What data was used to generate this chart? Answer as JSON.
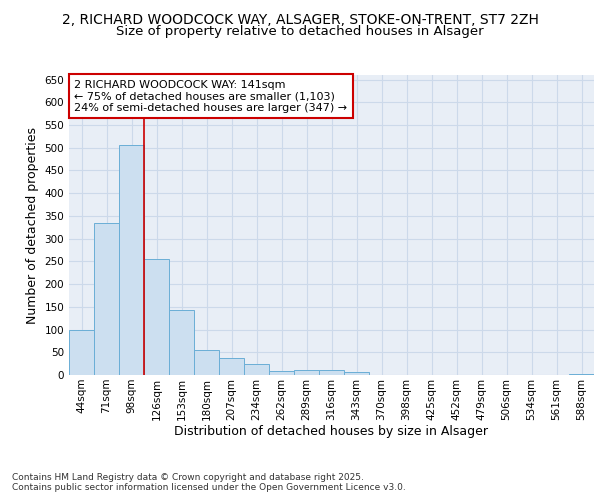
{
  "title_line1": "2, RICHARD WOODCOCK WAY, ALSAGER, STOKE-ON-TRENT, ST7 2ZH",
  "title_line2": "Size of property relative to detached houses in Alsager",
  "xlabel": "Distribution of detached houses by size in Alsager",
  "ylabel": "Number of detached properties",
  "categories": [
    "44sqm",
    "71sqm",
    "98sqm",
    "126sqm",
    "153sqm",
    "180sqm",
    "207sqm",
    "234sqm",
    "262sqm",
    "289sqm",
    "316sqm",
    "343sqm",
    "370sqm",
    "398sqm",
    "425sqm",
    "452sqm",
    "479sqm",
    "506sqm",
    "534sqm",
    "561sqm",
    "588sqm"
  ],
  "values": [
    100,
    335,
    505,
    255,
    142,
    55,
    38,
    24,
    8,
    10,
    10,
    6,
    0,
    0,
    0,
    0,
    0,
    0,
    0,
    0,
    3
  ],
  "bar_color": "#ccdff0",
  "bar_edge_color": "#6aaed6",
  "vline_color": "#cc0000",
  "vline_x": 2.5,
  "annotation_text": "2 RICHARD WOODCOCK WAY: 141sqm\n← 75% of detached houses are smaller (1,103)\n24% of semi-detached houses are larger (347) →",
  "annotation_box_color": "#cc0000",
  "grid_color": "#ccd9ea",
  "background_color": "#e8eef6",
  "ylim": [
    0,
    660
  ],
  "yticks": [
    0,
    50,
    100,
    150,
    200,
    250,
    300,
    350,
    400,
    450,
    500,
    550,
    600,
    650
  ],
  "footer_text": "Contains HM Land Registry data © Crown copyright and database right 2025.\nContains public sector information licensed under the Open Government Licence v3.0.",
  "title_fontsize": 10,
  "subtitle_fontsize": 9.5,
  "tick_fontsize": 7.5,
  "label_fontsize": 9,
  "annotation_fontsize": 8,
  "footer_fontsize": 6.5
}
